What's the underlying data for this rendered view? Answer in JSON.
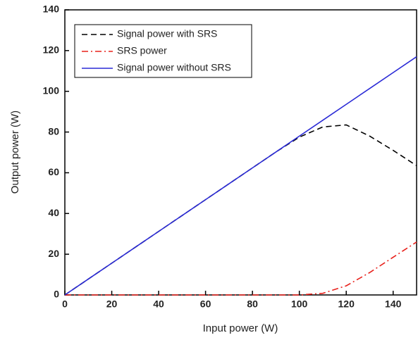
{
  "chart_data": {
    "type": "line",
    "x_label": "Input power (W)",
    "y_label": "Output power (W)",
    "x": [
      0,
      10,
      20,
      30,
      40,
      50,
      60,
      70,
      80,
      90,
      100,
      110,
      120,
      130,
      140,
      150
    ],
    "series": [
      {
        "name": "Signal power with SRS",
        "color": "#000000",
        "dash": "dashed",
        "values": [
          0,
          7.8,
          15.6,
          23.4,
          31.2,
          39,
          46.8,
          54.6,
          62.4,
          70.2,
          77.5,
          82.5,
          83.5,
          78,
          71,
          63.5
        ]
      },
      {
        "name": "SRS power",
        "color": "#e8211c",
        "dash": "dashdot",
        "values": [
          0,
          0,
          0,
          0,
          0,
          0,
          0,
          0,
          0,
          0,
          0,
          0.8,
          4.5,
          11,
          18.5,
          26
        ]
      },
      {
        "name": "Signal power without SRS",
        "color": "#2a2ad6",
        "dash": "solid",
        "values": [
          0,
          7.8,
          15.6,
          23.4,
          31.2,
          39,
          46.8,
          54.6,
          62.4,
          70.2,
          78,
          85.8,
          93.6,
          101.4,
          109.2,
          117
        ]
      }
    ],
    "xlim": [
      0,
      150
    ],
    "xticks": [
      0,
      20,
      40,
      60,
      80,
      100,
      120,
      140
    ],
    "ylim": [
      0,
      140
    ],
    "yticks": [
      0,
      20,
      40,
      60,
      80,
      100,
      120,
      140
    ],
    "legend": "upper left"
  }
}
